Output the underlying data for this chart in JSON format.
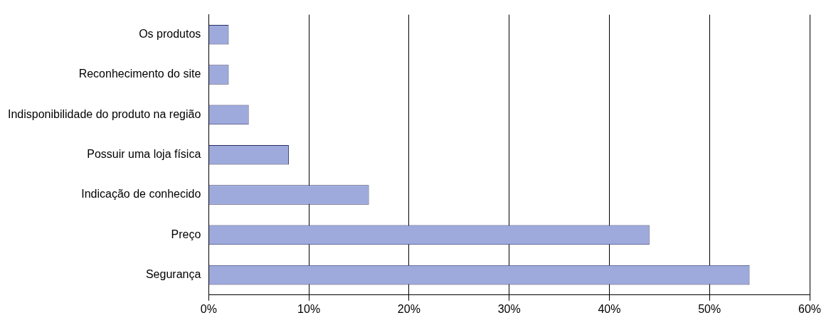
{
  "chart_data": {
    "type": "bar",
    "orientation": "horizontal",
    "categories": [
      "Os produtos",
      "Reconhecimento do site",
      "Indisponibilidade do produto na região",
      "Possuir uma loja física",
      "Indicação de conhecido",
      "Preço",
      "Segurança"
    ],
    "values": [
      2,
      2,
      4,
      8,
      16,
      44,
      54
    ],
    "color": "#9eaadc",
    "xlim": [
      0,
      60
    ],
    "xticks": [
      {
        "value": 0,
        "label": "0%"
      },
      {
        "value": 10,
        "label": "10%"
      },
      {
        "value": 20,
        "label": "20%"
      },
      {
        "value": 30,
        "label": "30%"
      },
      {
        "value": 40,
        "label": "40%"
      },
      {
        "value": 50,
        "label": "50%"
      },
      {
        "value": 60,
        "label": "60%"
      }
    ],
    "grid": "x",
    "legend": false
  }
}
